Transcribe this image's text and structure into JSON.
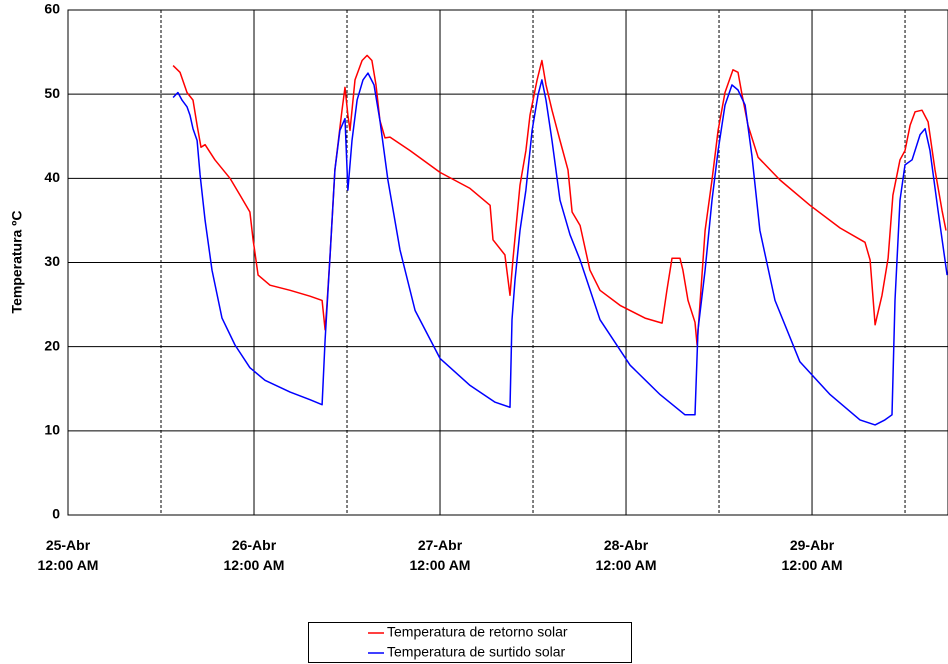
{
  "chart_data": {
    "type": "line",
    "y_label": "Temperatura ºC",
    "ylim": [
      0,
      60
    ],
    "yticks": [
      0,
      10,
      20,
      30,
      40,
      50,
      60
    ],
    "xlim": [
      0,
      4.731
    ],
    "xticks": [
      {
        "value": 0,
        "label": "25-Abr\n12:00 AM"
      },
      {
        "value": 1,
        "label": "26-Abr\n12:00 AM"
      },
      {
        "value": 2,
        "label": "27-Abr\n12:00 AM"
      },
      {
        "value": 3,
        "label": "28-Abr\n12:00 AM"
      },
      {
        "value": 4,
        "label": "29-Abr\n12:00 AM"
      }
    ],
    "grid": true,
    "legend": "bottom",
    "series": [
      {
        "name": "Temperatura de retorno solar",
        "color": "#ff0000",
        "x": [
          0.565,
          0.602,
          0.64,
          0.672,
          0.694,
          0.715,
          0.737,
          0.79,
          0.871,
          0.925,
          0.978,
          0.995,
          1.022,
          1.086,
          1.194,
          1.301,
          1.366,
          1.382,
          1.392,
          1.409,
          1.435,
          1.473,
          1.489,
          1.505,
          1.516,
          1.543,
          1.581,
          1.608,
          1.634,
          1.656,
          1.677,
          1.704,
          1.731,
          1.839,
          2.0,
          2.161,
          2.269,
          2.285,
          2.349,
          2.376,
          2.392,
          2.43,
          2.462,
          2.484,
          2.522,
          2.548,
          2.57,
          2.602,
          2.645,
          2.688,
          2.71,
          2.753,
          2.806,
          2.86,
          2.968,
          3.102,
          3.194,
          3.22,
          3.247,
          3.29,
          3.306,
          3.333,
          3.371,
          3.382,
          3.425,
          3.462,
          3.495,
          3.532,
          3.575,
          3.602,
          3.624,
          3.656,
          3.71,
          3.828,
          3.989,
          4.151,
          4.285,
          4.312,
          4.339,
          4.376,
          4.409,
          4.435,
          4.473,
          4.5,
          4.527,
          4.554,
          4.591,
          4.624,
          4.661,
          4.699,
          4.72
        ],
        "values": [
          53.4,
          52.6,
          50.2,
          49.3,
          46.3,
          43.7,
          44.0,
          42.2,
          40.0,
          38.0,
          36.0,
          32.7,
          28.5,
          27.3,
          26.7,
          26.0,
          25.5,
          22.0,
          24.9,
          30.9,
          41.0,
          48.1,
          50.8,
          47.5,
          45.7,
          51.7,
          54.0,
          54.6,
          54.0,
          51.1,
          46.9,
          44.8,
          44.9,
          43.3,
          40.7,
          38.8,
          36.8,
          32.7,
          30.9,
          26.1,
          30.3,
          39.2,
          43.3,
          47.5,
          51.7,
          54.0,
          51.1,
          48.1,
          44.5,
          41.0,
          36.0,
          34.4,
          29.1,
          26.7,
          24.9,
          23.4,
          22.8,
          26.7,
          30.5,
          30.5,
          29.1,
          25.5,
          22.9,
          20.2,
          33.8,
          39.8,
          45.7,
          50.2,
          52.9,
          52.6,
          49.9,
          46.3,
          42.5,
          39.8,
          36.8,
          34.1,
          32.4,
          30.3,
          22.6,
          26.1,
          30.5,
          38.0,
          42.2,
          43.3,
          46.3,
          47.9,
          48.1,
          46.7,
          41.0,
          36.2,
          33.8
        ]
      },
      {
        "name": "Temperatura de surtido solar",
        "color": "#0000ff",
        "x": [
          0.565,
          0.591,
          0.613,
          0.64,
          0.656,
          0.672,
          0.694,
          0.71,
          0.737,
          0.774,
          0.828,
          0.898,
          0.978,
          1.059,
          1.194,
          1.301,
          1.366,
          1.382,
          1.409,
          1.435,
          1.462,
          1.489,
          1.505,
          1.527,
          1.554,
          1.586,
          1.613,
          1.645,
          1.677,
          1.72,
          1.785,
          1.866,
          2.0,
          2.161,
          2.296,
          2.376,
          2.387,
          2.403,
          2.43,
          2.462,
          2.495,
          2.527,
          2.548,
          2.57,
          2.602,
          2.645,
          2.699,
          2.753,
          2.86,
          3.022,
          3.183,
          3.317,
          3.371,
          3.387,
          3.425,
          3.462,
          3.495,
          3.532,
          3.57,
          3.602,
          3.64,
          3.677,
          3.72,
          3.801,
          3.935,
          4.097,
          4.258,
          4.339,
          4.392,
          4.43,
          4.446,
          4.473,
          4.5,
          4.538,
          4.581,
          4.608,
          4.634,
          4.677,
          4.726
        ],
        "values": [
          49.6,
          50.2,
          49.3,
          48.5,
          47.5,
          45.9,
          44.5,
          40.4,
          35.0,
          29.1,
          23.4,
          20.2,
          17.5,
          16.0,
          14.6,
          13.7,
          13.1,
          20.8,
          30.9,
          41.0,
          45.7,
          47.1,
          38.6,
          44.5,
          49.3,
          51.7,
          52.5,
          51.1,
          46.9,
          39.8,
          31.5,
          24.3,
          18.6,
          15.4,
          13.4,
          12.8,
          23.2,
          27.9,
          33.8,
          38.6,
          45.7,
          49.9,
          51.7,
          49.3,
          44.5,
          37.4,
          33.3,
          30.3,
          23.2,
          17.8,
          14.3,
          11.9,
          11.9,
          22.0,
          29.1,
          37.4,
          43.3,
          48.7,
          51.1,
          50.5,
          48.7,
          42.7,
          33.8,
          25.5,
          18.2,
          14.3,
          11.3,
          10.7,
          11.3,
          11.9,
          25.5,
          37.4,
          41.6,
          42.2,
          45.2,
          45.9,
          43.3,
          36.2,
          28.5
        ]
      }
    ]
  }
}
